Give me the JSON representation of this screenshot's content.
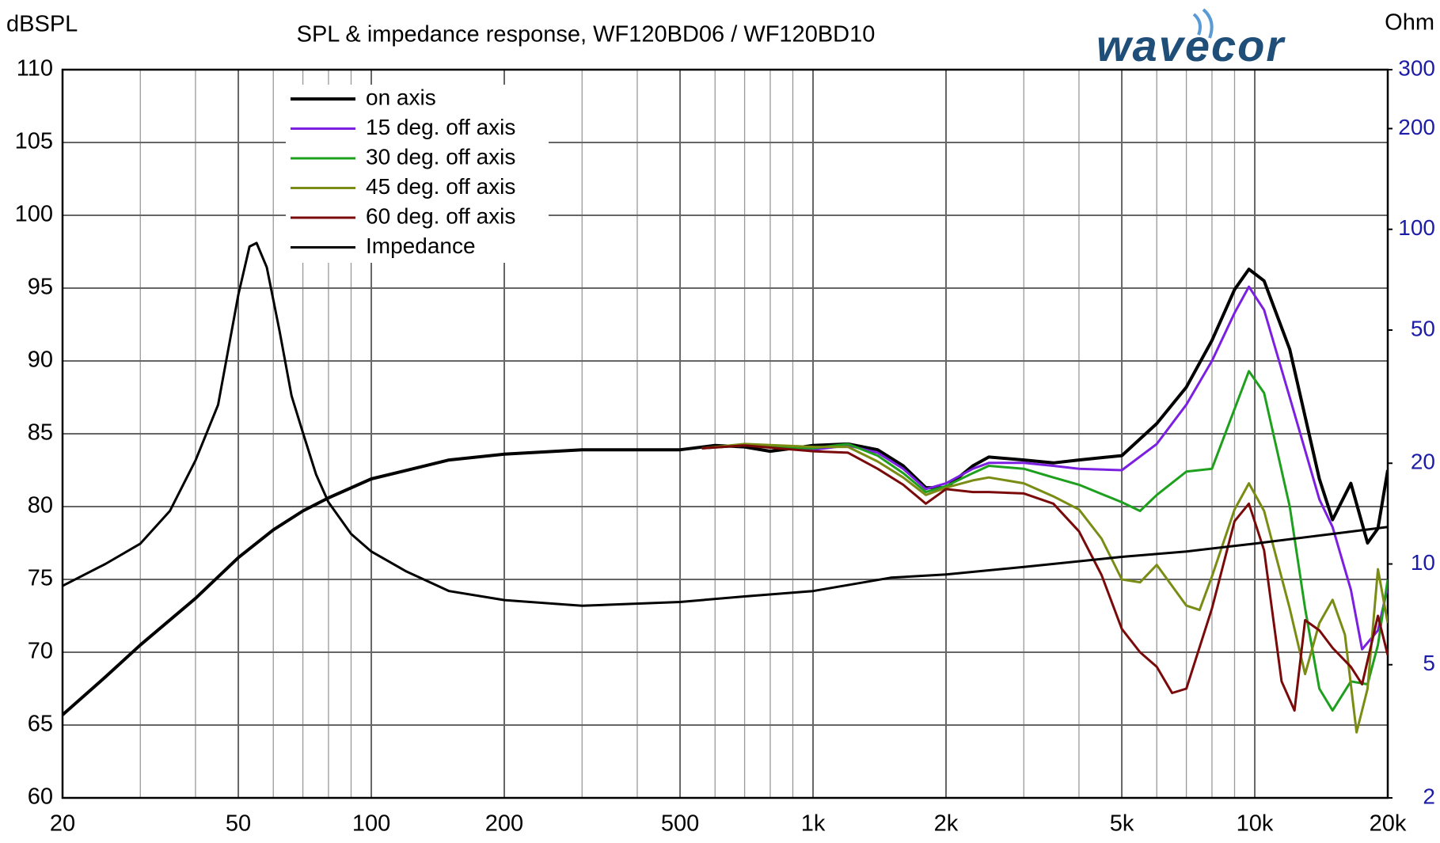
{
  "chart_data": {
    "type": "line",
    "title": "SPL & impedance response, WF120BD06 / WF120BD10",
    "logo": "wavecor",
    "ylabel": "dBSPL",
    "y2label": "Ohm",
    "xscale": "log",
    "y2scale": "log",
    "grid": true,
    "legend": "upper left",
    "xlim": [
      20,
      20000
    ],
    "xticks": [
      20,
      50,
      100,
      200,
      500,
      {
        "value": 1000,
        "label": "1k"
      },
      {
        "value": 2000,
        "label": "2k"
      },
      {
        "value": 5000,
        "label": "5k"
      },
      {
        "value": 10000,
        "label": "10k"
      },
      {
        "value": 20000,
        "label": "20k"
      }
    ],
    "xminor": [
      30,
      40,
      60,
      70,
      80,
      90,
      300,
      400,
      600,
      700,
      800,
      900,
      3000,
      4000,
      6000,
      7000,
      8000,
      9000
    ],
    "ylim": [
      60,
      110
    ],
    "yticks": [
      60,
      65,
      70,
      75,
      80,
      85,
      90,
      95,
      100,
      105,
      110
    ],
    "y2lim": [
      2,
      300
    ],
    "y2ticks": [
      2,
      5,
      10,
      20,
      50,
      100,
      200,
      300
    ],
    "series": [
      {
        "name": "on axis",
        "color": "#000000",
        "width": 4,
        "x": [
          20,
          25,
          30,
          40,
          50,
          60,
          70,
          80,
          100,
          150,
          200,
          300,
          500,
          600,
          700,
          800,
          900,
          1000,
          1200,
          1400,
          1600,
          1800,
          2000,
          2300,
          2500,
          3000,
          3500,
          4000,
          5000,
          6000,
          7000,
          8000,
          9000,
          9700,
          10500,
          12000,
          14000,
          15000,
          16500,
          18000,
          19000,
          20000
        ],
        "values": [
          65.7,
          68.3,
          70.5,
          73.7,
          76.5,
          78.4,
          79.7,
          80.6,
          81.9,
          83.2,
          83.6,
          83.9,
          83.9,
          84.2,
          84.1,
          83.8,
          84.0,
          84.2,
          84.3,
          83.9,
          82.8,
          81.3,
          81.3,
          82.8,
          83.4,
          83.2,
          83.0,
          83.2,
          83.5,
          85.7,
          88.2,
          91.4,
          94.9,
          96.3,
          95.5,
          90.8,
          81.9,
          79.1,
          81.6,
          77.5,
          78.5,
          82.5
        ]
      },
      {
        "name": "15 deg. off axis",
        "color": "#7b20e0",
        "width": 3,
        "x": [
          560,
          700,
          1000,
          1200,
          1400,
          1600,
          1800,
          2000,
          2300,
          2500,
          3000,
          3500,
          4000,
          5000,
          6000,
          7000,
          8000,
          9000,
          9700,
          10500,
          12000,
          14000,
          15000,
          16500,
          17500,
          19000,
          20000
        ],
        "values": [
          84.0,
          84.2,
          83.9,
          84.2,
          83.7,
          82.6,
          81.2,
          81.6,
          82.6,
          83.0,
          83.0,
          82.8,
          82.6,
          82.5,
          84.3,
          87.0,
          90.0,
          93.3,
          95.1,
          93.5,
          87.5,
          80.5,
          78.6,
          74.3,
          70.2,
          71.5,
          74.5
        ]
      },
      {
        "name": "30 deg. off axis",
        "color": "#1ea01e",
        "width": 3,
        "x": [
          560,
          700,
          1000,
          1200,
          1400,
          1600,
          1800,
          2000,
          2300,
          2500,
          3000,
          3500,
          4000,
          5000,
          5500,
          6000,
          7000,
          8000,
          9000,
          9700,
          10500,
          12000,
          13000,
          14000,
          15000,
          16500,
          18000,
          19000,
          20000
        ],
        "values": [
          84.0,
          84.2,
          84.0,
          84.3,
          83.5,
          82.3,
          81.0,
          81.4,
          82.3,
          82.8,
          82.6,
          82.0,
          81.5,
          80.3,
          79.7,
          80.8,
          82.4,
          82.6,
          86.7,
          89.3,
          87.8,
          80.0,
          73.0,
          67.5,
          66.0,
          68.0,
          67.8,
          70.5,
          75.0
        ]
      },
      {
        "name": "45 deg. off axis",
        "color": "#7a8c14",
        "width": 3,
        "x": [
          560,
          700,
          1000,
          1200,
          1400,
          1600,
          1800,
          2000,
          2300,
          2500,
          3000,
          3500,
          4000,
          4500,
          5000,
          5500,
          6000,
          7000,
          7500,
          8000,
          9000,
          9700,
          10500,
          12000,
          13000,
          14000,
          15000,
          16000,
          17000,
          18000,
          19000,
          20000
        ],
        "values": [
          84.0,
          84.3,
          84.1,
          84.1,
          83.1,
          82.0,
          80.8,
          81.3,
          81.8,
          82.0,
          81.6,
          80.7,
          79.8,
          77.8,
          75.0,
          74.8,
          76.0,
          73.2,
          72.9,
          75.2,
          79.8,
          81.6,
          79.7,
          73.0,
          68.5,
          72.0,
          73.6,
          71.2,
          64.5,
          67.5,
          75.7,
          72.0
        ]
      },
      {
        "name": "60 deg. off axis",
        "color": "#7a0a0a",
        "width": 3,
        "x": [
          560,
          700,
          1000,
          1200,
          1400,
          1600,
          1800,
          2000,
          2300,
          2500,
          3000,
          3500,
          4000,
          4500,
          5000,
          5500,
          6000,
          6500,
          7000,
          8000,
          9000,
          9700,
          10500,
          11500,
          12300,
          13000,
          14000,
          15000,
          16500,
          17500,
          19000,
          20000
        ],
        "values": [
          84.0,
          84.2,
          83.8,
          83.7,
          82.6,
          81.5,
          80.2,
          81.2,
          81.0,
          81.0,
          80.9,
          80.2,
          78.3,
          75.3,
          71.6,
          70.0,
          69.0,
          67.2,
          67.5,
          73.0,
          79.0,
          80.2,
          77.0,
          68.0,
          66.0,
          72.2,
          71.5,
          70.3,
          69.0,
          67.8,
          72.5,
          69.8
        ]
      },
      {
        "name": "Impedance",
        "color": "#000000",
        "width": 3,
        "axis": "y2",
        "x": [
          20,
          25,
          30,
          35,
          40,
          45,
          50,
          53,
          55,
          58,
          62,
          66,
          70,
          75,
          80,
          90,
          100,
          120,
          150,
          200,
          300,
          500,
          700,
          1000,
          1500,
          2000,
          3000,
          5000,
          7000,
          10000,
          15000,
          20000
        ],
        "values": [
          8.6,
          10.0,
          11.5,
          14.4,
          20.4,
          29.9,
          63.8,
          88.8,
          91,
          77,
          49.6,
          31.8,
          24.7,
          18.5,
          15.3,
          12.3,
          10.9,
          9.5,
          8.3,
          7.8,
          7.5,
          7.7,
          8.0,
          8.3,
          9.1,
          9.3,
          9.8,
          10.5,
          10.9,
          11.5,
          12.3,
          12.9
        ]
      }
    ]
  }
}
